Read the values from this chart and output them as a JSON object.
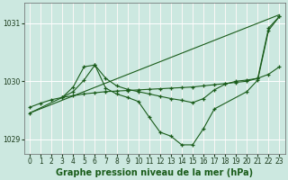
{
  "bg_color": "#cce8e0",
  "grid_color": "#ffffff",
  "line_color": "#1a5c1a",
  "xlabel": "Graphe pression niveau de la mer (hPa)",
  "xlabel_fontsize": 7,
  "xlim": [
    -0.5,
    23.5
  ],
  "ylim": [
    1028.75,
    1031.35
  ],
  "yticks": [
    1029,
    1030,
    1031
  ],
  "xticks": [
    0,
    1,
    2,
    3,
    4,
    5,
    6,
    7,
    8,
    9,
    10,
    11,
    12,
    13,
    14,
    15,
    16,
    17,
    18,
    19,
    20,
    21,
    22,
    23
  ],
  "series": [
    {
      "x": [
        0,
        23
      ],
      "y": [
        1029.45,
        1031.15
      ],
      "has_markers": false
    },
    {
      "x": [
        0,
        1,
        2,
        3,
        4,
        5,
        6,
        7,
        8,
        9,
        10,
        11,
        12,
        13,
        14,
        15,
        16,
        17,
        18,
        19,
        20,
        21,
        22,
        23
      ],
      "y": [
        1029.55,
        1029.62,
        1029.68,
        1029.72,
        1029.75,
        1029.78,
        1029.8,
        1029.82,
        1029.83,
        1029.84,
        1029.85,
        1029.86,
        1029.87,
        1029.88,
        1029.89,
        1029.9,
        1029.92,
        1029.94,
        1029.96,
        1029.98,
        1030.0,
        1030.05,
        1030.12,
        1030.25
      ],
      "has_markers": true
    },
    {
      "x": [
        3,
        4,
        5,
        6,
        7,
        8,
        9,
        10,
        11,
        12,
        13,
        14,
        15,
        16,
        17,
        18,
        19,
        20,
        21,
        22,
        23
      ],
      "y": [
        1029.72,
        1029.9,
        1030.25,
        1030.28,
        1030.05,
        1029.92,
        1029.86,
        1029.82,
        1029.78,
        1029.74,
        1029.7,
        1029.67,
        1029.63,
        1029.7,
        1029.85,
        1029.95,
        1030.0,
        1030.02,
        1030.05,
        1030.92,
        1031.12
      ],
      "has_markers": true
    },
    {
      "x": [
        0,
        3,
        4,
        5,
        6,
        7,
        8,
        9,
        10,
        11,
        12,
        13,
        14,
        15,
        16,
        17,
        20,
        21,
        22,
        23
      ],
      "y": [
        1029.45,
        1029.72,
        1029.82,
        1030.02,
        1030.28,
        1029.88,
        1029.78,
        1029.72,
        1029.65,
        1029.38,
        1029.12,
        1029.05,
        1028.9,
        1028.9,
        1029.18,
        1029.52,
        1029.82,
        1030.02,
        1030.88,
        1031.12
      ],
      "has_markers": true
    }
  ]
}
